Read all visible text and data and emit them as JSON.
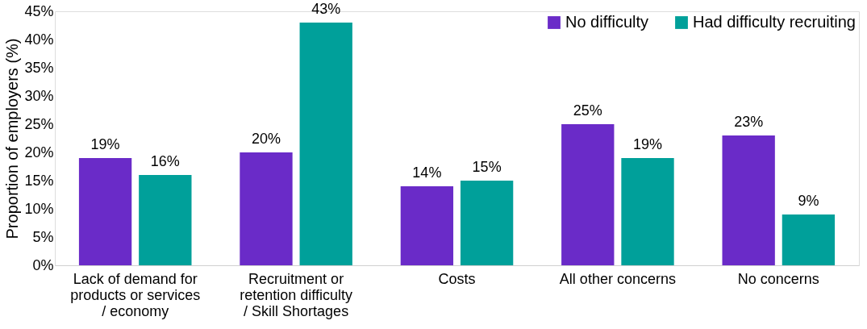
{
  "chart_data": {
    "type": "bar",
    "ylabel": "Proportion of employers (%)",
    "categories": [
      "Lack of demand for products or services / economy",
      "Recruitment or retention difficulty / Skill Shortages",
      "Costs",
      "All other concerns",
      "No concerns"
    ],
    "series": [
      {
        "name": "No difficulty",
        "color": "#6a2bc8",
        "values": [
          19,
          20,
          14,
          25,
          23
        ],
        "value_labels": [
          "19%",
          "20%",
          "14%",
          "25%",
          "23%"
        ]
      },
      {
        "name": "Had difficulty recruiting",
        "color": "#00a09a",
        "values": [
          16,
          43,
          15,
          19,
          9
        ],
        "value_labels": [
          "16%",
          "43%",
          "15%",
          "19%",
          "9%"
        ]
      }
    ],
    "ylim": [
      0,
      45
    ],
    "yticks": [
      {
        "value": 0,
        "label": "0%"
      },
      {
        "value": 5,
        "label": "5%"
      },
      {
        "value": 10,
        "label": "10%"
      },
      {
        "value": 15,
        "label": "15%"
      },
      {
        "value": 20,
        "label": "20%"
      },
      {
        "value": 25,
        "label": "25%"
      },
      {
        "value": 30,
        "label": "30%"
      },
      {
        "value": 35,
        "label": "35%"
      },
      {
        "value": 40,
        "label": "40%"
      },
      {
        "value": 45,
        "label": "45%"
      }
    ],
    "grid": false,
    "legend": "top right"
  }
}
